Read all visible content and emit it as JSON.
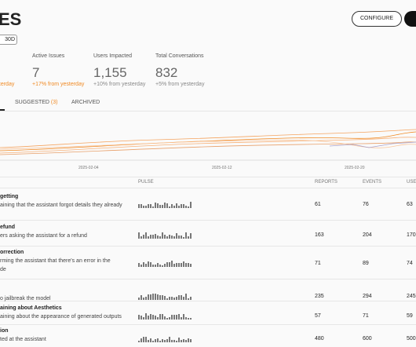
{
  "header": {
    "title": "ES",
    "configure": "CONFIGURE",
    "range": "30D"
  },
  "stats": [
    {
      "change": "yesterday"
    },
    {
      "label": "Active Issues",
      "value": "7",
      "change": "+17% from yesterday"
    },
    {
      "label": "Users Impacted",
      "value": "1,155",
      "change": "+10% from yesterday"
    },
    {
      "label": "Total Conversations",
      "value": "832",
      "change": "+5% from yesterday"
    }
  ],
  "tabs": {
    "suggested": "SUGGESTED",
    "suggested_count": "(3)",
    "archived": "ARCHIVED"
  },
  "timeline": {
    "x_labels": [
      "2025-02-04",
      "2025-02-12",
      "2025-02-20"
    ]
  },
  "table": {
    "columns": [
      "PULSE",
      "REPORTS",
      "EVENTS",
      "USE"
    ],
    "rows": [
      {
        "title": "getting",
        "description": [
          "aining that the assistant forgot details they already"
        ],
        "reports": 61,
        "events": 76,
        "users": 63
      },
      {
        "title": "efund",
        "description": [
          "ers asking the assistant for a refund"
        ],
        "reports": 163,
        "events": 204,
        "users": 170
      },
      {
        "title": "orrection",
        "description": [
          "rming the assistant that there's an error in the",
          "de"
        ],
        "reports": 71,
        "events": 89,
        "users": 74
      },
      {
        "description": [
          "o jailbreak the model"
        ],
        "reports": 235,
        "events": 294,
        "users": 245
      },
      {
        "title": "aining about Aesthetics",
        "description": [
          "aining about the appearance of generated outputs"
        ],
        "reports": 57,
        "events": 71,
        "users": 59
      },
      {
        "title": "ion",
        "description": [
          "ted at the assistant"
        ],
        "reports": 480,
        "events": 600,
        "users": 500
      }
    ]
  }
}
